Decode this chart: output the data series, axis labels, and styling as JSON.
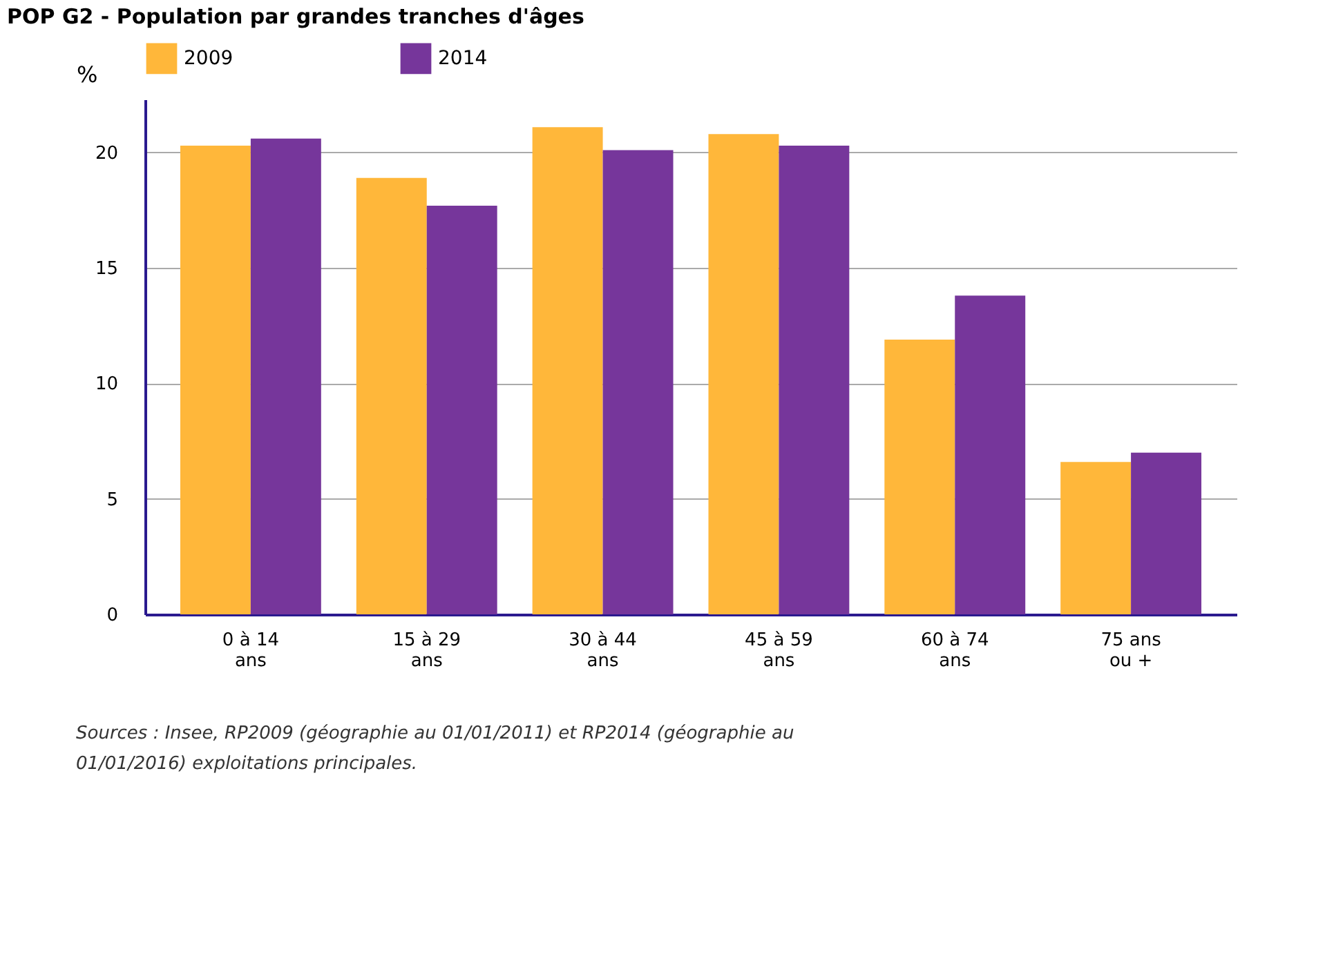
{
  "chart_data": {
    "type": "bar",
    "title": "POP G2 - Population par grandes tranches d'âges",
    "ylabel": "%",
    "categories": [
      "0 à 14\nans",
      "15 à 29\nans",
      "30 à 44\nans",
      "45 à 59\nans",
      "60 à 74\nans",
      "75 ans\nou +"
    ],
    "series": [
      {
        "name": "2009",
        "color": "#ffb73a",
        "values": [
          20.3,
          18.9,
          21.1,
          20.8,
          11.9,
          6.6
        ]
      },
      {
        "name": "2014",
        "color": "#76369b",
        "values": [
          20.6,
          17.7,
          20.1,
          20.3,
          13.8,
          7.0
        ]
      }
    ],
    "ylim": [
      0,
      22.3
    ],
    "yticks": [
      0,
      5,
      10,
      15,
      20
    ],
    "grid": "y",
    "legend": "top",
    "annotations": [
      "Sources : Insee, RP2009 (géographie au 01/01/2011) et RP2014 (géographie au 01/01/2016) exploitations principales."
    ]
  }
}
